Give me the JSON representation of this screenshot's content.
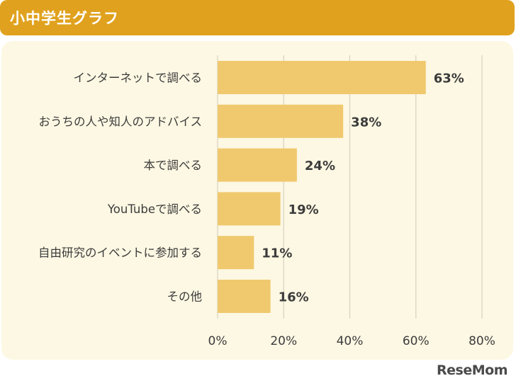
{
  "header": {
    "title": "小中学生グラフ"
  },
  "brand": {
    "logo_text": "ReseMom"
  },
  "colors": {
    "header": "#e0a21e",
    "panel": "#fdf8e3",
    "bar": "#f0c96e",
    "grid": "#d9d4c4",
    "label": "#3c3c3c"
  },
  "chart_data": {
    "type": "bar",
    "orientation": "horizontal",
    "categories": [
      "インターネットで調べる",
      "おうちの人や知人のアドバイス",
      "本で調べる",
      "YouTubeで調べる",
      "自由研究のイベントに参加する",
      "その他"
    ],
    "values": [
      63,
      38,
      24,
      19,
      11,
      16
    ],
    "data_labels": [
      "63%",
      "38%",
      "24%",
      "19%",
      "11%",
      "16%"
    ],
    "xlim": [
      0,
      80
    ],
    "x_ticks": [
      0,
      20,
      40,
      60,
      80
    ],
    "x_tick_labels": [
      "0%",
      "20%",
      "40%",
      "60%",
      "80%"
    ],
    "grid": true,
    "legend": false
  }
}
